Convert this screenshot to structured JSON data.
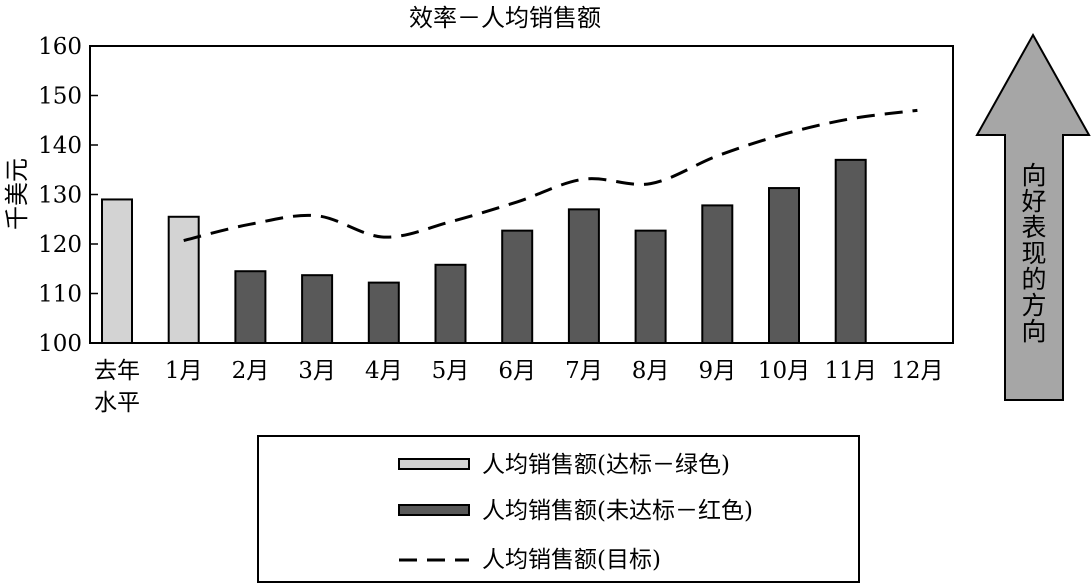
{
  "chart_data": {
    "type": "bar",
    "title": "效率－人均销售额",
    "ylabel": "千美元",
    "xlabel": "",
    "ylim": [
      100,
      160
    ],
    "yticks": [
      100,
      110,
      120,
      130,
      140,
      150,
      160
    ],
    "grid": false,
    "categories": [
      "去年\n水平",
      "1月",
      "2月",
      "3月",
      "4月",
      "5月",
      "6月",
      "7月",
      "8月",
      "9月",
      "10月",
      "11月",
      "12月"
    ],
    "series": [
      {
        "name": "人均销售额(达标－绿色)",
        "kind": "bar",
        "color": "#d3d3d3",
        "values": [
          129,
          125.5,
          null,
          null,
          null,
          null,
          null,
          null,
          null,
          null,
          null,
          null,
          null
        ]
      },
      {
        "name": "人均销售额(未达标－红色)",
        "kind": "bar",
        "color": "#595959",
        "values": [
          null,
          null,
          114.5,
          113.7,
          112.2,
          115.8,
          122.7,
          127,
          122.7,
          127.8,
          131.3,
          137,
          null
        ]
      },
      {
        "name": "人均销售额(目标)",
        "kind": "dashed-line",
        "color": "#000000",
        "values": [
          null,
          120.7,
          124,
          125.7,
          121.4,
          124.5,
          128.5,
          133.1,
          132.2,
          137.8,
          142.2,
          145.3,
          147
        ]
      }
    ],
    "legend_position": "bottom",
    "annotation": {
      "text": "向好表现的方向",
      "shape": "up-arrow"
    }
  }
}
